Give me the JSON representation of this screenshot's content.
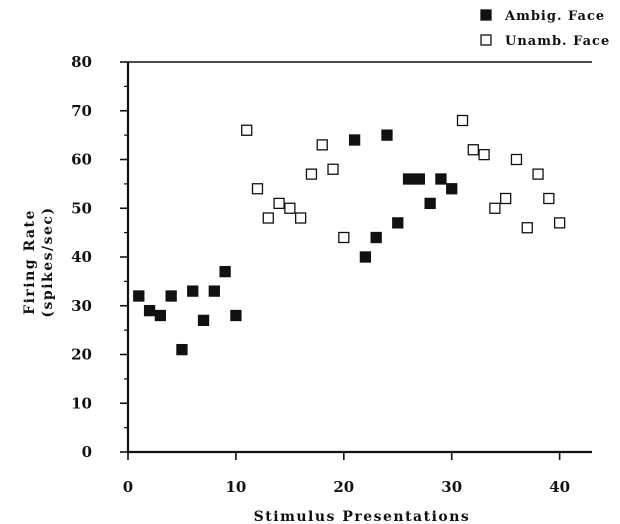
{
  "chart_data": {
    "type": "scatter",
    "xlabel": "Stimulus Presentations",
    "ylabel_line1": "Firing Rate",
    "ylabel_line2": "(spikes/sec)",
    "xlim": [
      0,
      43
    ],
    "ylim": [
      0,
      80
    ],
    "xticks": [
      0,
      10,
      20,
      30,
      40
    ],
    "yticks": [
      0,
      10,
      20,
      30,
      40,
      50,
      60,
      70,
      80
    ],
    "legend_position": "top-right",
    "grid": false,
    "series": [
      {
        "name": "Ambig. Face",
        "marker": "filled-square",
        "color": "#111111",
        "points": [
          [
            1,
            32
          ],
          [
            2,
            29
          ],
          [
            3,
            28
          ],
          [
            4,
            32
          ],
          [
            5,
            21
          ],
          [
            6,
            33
          ],
          [
            7,
            27
          ],
          [
            8,
            33
          ],
          [
            9,
            37
          ],
          [
            10,
            28
          ],
          [
            21,
            64
          ],
          [
            22,
            40
          ],
          [
            23,
            44
          ],
          [
            24,
            65
          ],
          [
            25,
            47
          ],
          [
            26,
            56
          ],
          [
            27,
            56
          ],
          [
            28,
            51
          ],
          [
            29,
            56
          ],
          [
            30,
            54
          ]
        ]
      },
      {
        "name": "Unamb. Face",
        "marker": "open-square",
        "color": "#111111",
        "points": [
          [
            11,
            66
          ],
          [
            12,
            54
          ],
          [
            13,
            48
          ],
          [
            14,
            51
          ],
          [
            15,
            50
          ],
          [
            16,
            48
          ],
          [
            17,
            57
          ],
          [
            18,
            63
          ],
          [
            19,
            58
          ],
          [
            20,
            44
          ],
          [
            31,
            68
          ],
          [
            32,
            62
          ],
          [
            33,
            61
          ],
          [
            34,
            50
          ],
          [
            35,
            52
          ],
          [
            36,
            60
          ],
          [
            37,
            46
          ],
          [
            38,
            57
          ],
          [
            39,
            52
          ],
          [
            40,
            47
          ]
        ]
      }
    ]
  }
}
